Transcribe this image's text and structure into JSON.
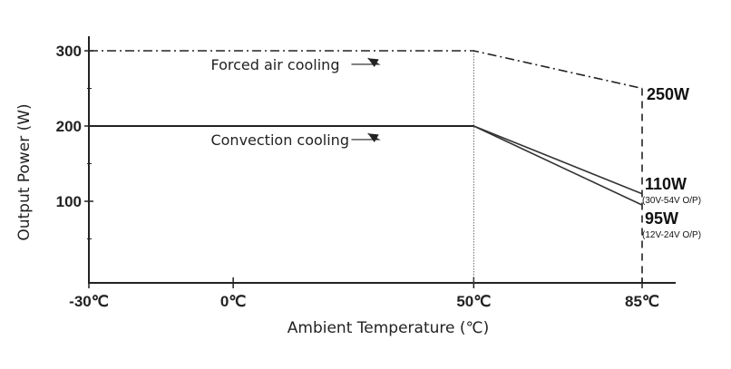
{
  "chart_data": {
    "type": "line",
    "title": "",
    "xlabel": "Ambient Temperature (℃)",
    "ylabel": "Output Power (W)",
    "xlim": [
      -30,
      85
    ],
    "ylim": [
      0,
      300
    ],
    "x_ticks": [
      {
        "value": -30,
        "label": "-30℃"
      },
      {
        "value": 0,
        "label": "0℃"
      },
      {
        "value": 50,
        "label": "50℃"
      },
      {
        "value": 85,
        "label": "85℃"
      }
    ],
    "y_ticks": [
      {
        "value": 100,
        "label": "100"
      },
      {
        "value": 200,
        "label": "200"
      },
      {
        "value": 300,
        "label": "300"
      }
    ],
    "series": [
      {
        "name": "Forced air cooling",
        "style": "dash-dot",
        "points": [
          [
            -30,
            300
          ],
          [
            50,
            300
          ],
          [
            85,
            250
          ]
        ]
      },
      {
        "name": "Convection cooling",
        "style": "solid",
        "points": [
          [
            -30,
            200
          ],
          [
            50,
            200
          ]
        ]
      },
      {
        "name": "Convection cooling (30V-54V O/P)",
        "style": "solid",
        "points": [
          [
            50,
            200
          ],
          [
            85,
            110
          ]
        ]
      },
      {
        "name": "Convection cooling (12V-24V O/P)",
        "style": "solid",
        "points": [
          [
            50,
            200
          ],
          [
            85,
            95
          ]
        ]
      }
    ],
    "annotations": [
      {
        "text": "Forced air cooling",
        "x": 11,
        "y": 282,
        "arrow_to": [
          28,
          290
        ]
      },
      {
        "text": "Convection cooling",
        "x": 11,
        "y": 182,
        "arrow_to": [
          28,
          190
        ]
      }
    ],
    "end_labels": [
      {
        "value": "250W",
        "note": ""
      },
      {
        "value": "110W",
        "note": "(30V-54V O/P)"
      },
      {
        "value": "95W",
        "note": "(12V-24V O/P)"
      }
    ],
    "grid": false,
    "legend": "none"
  }
}
